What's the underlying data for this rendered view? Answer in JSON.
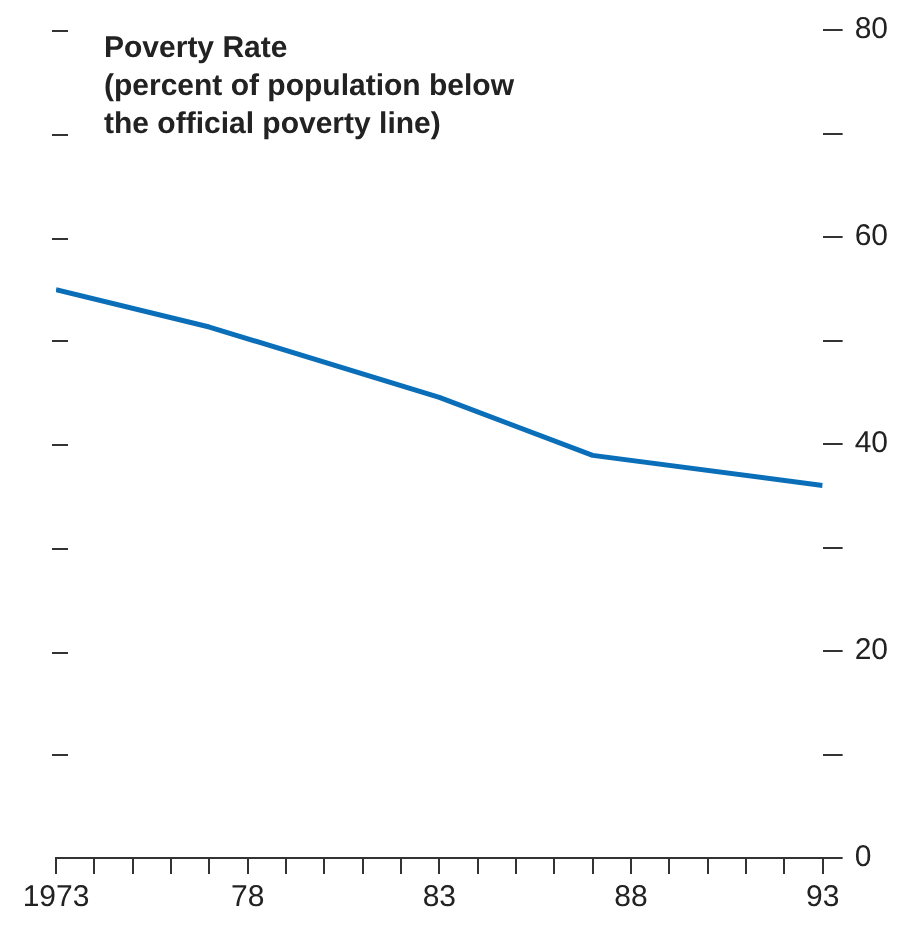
{
  "chart_data": {
    "type": "line",
    "title": "Poverty Rate",
    "subtitle": "(percent of population below the official poverty line)",
    "x": [
      1973,
      1977,
      1983,
      1987,
      1993
    ],
    "series": [
      {
        "color": "#0a6fb8",
        "values": [
          54.9,
          51.3,
          44.5,
          38.9,
          36.0
        ]
      }
    ],
    "xlim": [
      1973,
      1993
    ],
    "xticks": [
      1973,
      {
        "value": 1974,
        "label": null
      },
      {
        "value": 1975,
        "label": null
      },
      {
        "value": 1976,
        "label": null
      },
      {
        "value": 1977,
        "label": null
      },
      {
        "value": 1978,
        "label": "78"
      },
      {
        "value": 1979,
        "label": null
      },
      {
        "value": 1980,
        "label": null
      },
      {
        "value": 1981,
        "label": null
      },
      {
        "value": 1982,
        "label": null
      },
      {
        "value": 1983,
        "label": "83"
      },
      {
        "value": 1984,
        "label": null
      },
      {
        "value": 1985,
        "label": null
      },
      {
        "value": 1986,
        "label": null
      },
      {
        "value": 1987,
        "label": null
      },
      {
        "value": 1988,
        "label": "88"
      },
      {
        "value": 1989,
        "label": null
      },
      {
        "value": 1990,
        "label": null
      },
      {
        "value": 1991,
        "label": null
      },
      {
        "value": 1992,
        "label": null
      },
      {
        "value": 1993,
        "label": "93"
      }
    ],
    "ylim": [
      0,
      80
    ],
    "yticks": [
      0,
      {
        "value": 10,
        "label": null
      },
      20,
      {
        "value": 30,
        "label": null
      },
      40,
      {
        "value": 50,
        "label": null
      },
      60,
      {
        "value": 70,
        "label": null
      },
      80
    ],
    "grid": false,
    "legend": false,
    "marker": "none",
    "line_style": "solid"
  }
}
